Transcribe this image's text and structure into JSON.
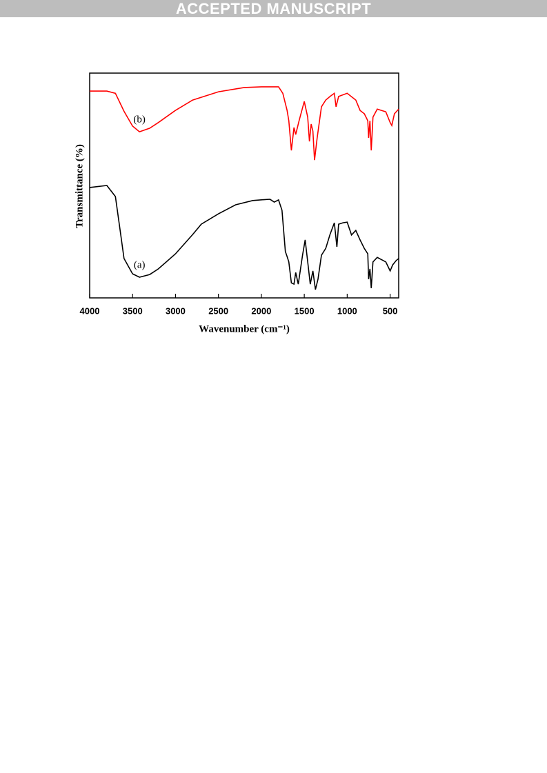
{
  "banner": "ACCEPTED MANUSCRIPT",
  "chart_data": {
    "type": "line",
    "xlabel": "Wavenumber (cm⁻¹)",
    "ylabel": "Transmittance (%)",
    "xlim": [
      4000,
      400
    ],
    "ylim": [
      0,
      100
    ],
    "xticks": [
      4000,
      3500,
      3000,
      2500,
      2000,
      1500,
      1000,
      500
    ],
    "series": [
      {
        "name": "(a)",
        "color": "#000000",
        "x": [
          4000,
          3800,
          3700,
          3650,
          3600,
          3500,
          3420,
          3300,
          3200,
          3000,
          2800,
          2700,
          2500,
          2300,
          2100,
          1900,
          1850,
          1800,
          1760,
          1720,
          1700,
          1680,
          1650,
          1620,
          1600,
          1570,
          1520,
          1490,
          1460,
          1430,
          1400,
          1370,
          1340,
          1300,
          1250,
          1200,
          1150,
          1120,
          1100,
          1050,
          1000,
          950,
          900,
          850,
          800,
          760,
          750,
          735,
          720,
          700,
          650,
          550,
          500,
          470,
          430,
          400
        ],
        "values": [
          49.1,
          50,
          45.1,
          31.3,
          17.5,
          10.7,
          9.2,
          10.4,
          12.9,
          19.6,
          28.2,
          32.8,
          37.4,
          41.4,
          43.3,
          43.9,
          42.6,
          43.6,
          39,
          20.6,
          18.4,
          16,
          6.7,
          6.1,
          11.3,
          6.1,
          19,
          25.8,
          16,
          6.1,
          12,
          3.7,
          8.3,
          19,
          22,
          28.2,
          33.4,
          22.7,
          32.8,
          33.4,
          33.7,
          28,
          30,
          25.8,
          22,
          19.6,
          8.3,
          12.9,
          4.3,
          16,
          18,
          16,
          12,
          14.7,
          16.6,
          17.5
        ]
      },
      {
        "name": "(b)",
        "color": "#ff0000",
        "x": [
          4000,
          3800,
          3700,
          3600,
          3500,
          3420,
          3300,
          3200,
          3000,
          2800,
          2500,
          2200,
          2000,
          1800,
          1750,
          1700,
          1680,
          1650,
          1620,
          1600,
          1560,
          1500,
          1460,
          1440,
          1420,
          1400,
          1380,
          1350,
          1300,
          1250,
          1200,
          1150,
          1130,
          1100,
          1000,
          900,
          850,
          800,
          760,
          750,
          735,
          720,
          700,
          650,
          550,
          500,
          480,
          450,
          400
        ],
        "values": [
          92,
          92,
          91,
          83,
          76.4,
          73.9,
          75.5,
          78,
          83.4,
          88,
          91.7,
          93.6,
          93.9,
          93.9,
          91,
          83.4,
          78.8,
          65.6,
          75.8,
          72.7,
          78.8,
          87.4,
          80.4,
          69.6,
          77.3,
          74.2,
          61.3,
          71.2,
          85,
          88,
          89.6,
          91,
          85,
          89.6,
          91,
          88,
          83.4,
          81.9,
          78.8,
          71.2,
          78.8,
          65.6,
          80.4,
          84,
          82.8,
          78,
          76.7,
          81.9,
          84
        ]
      }
    ]
  }
}
